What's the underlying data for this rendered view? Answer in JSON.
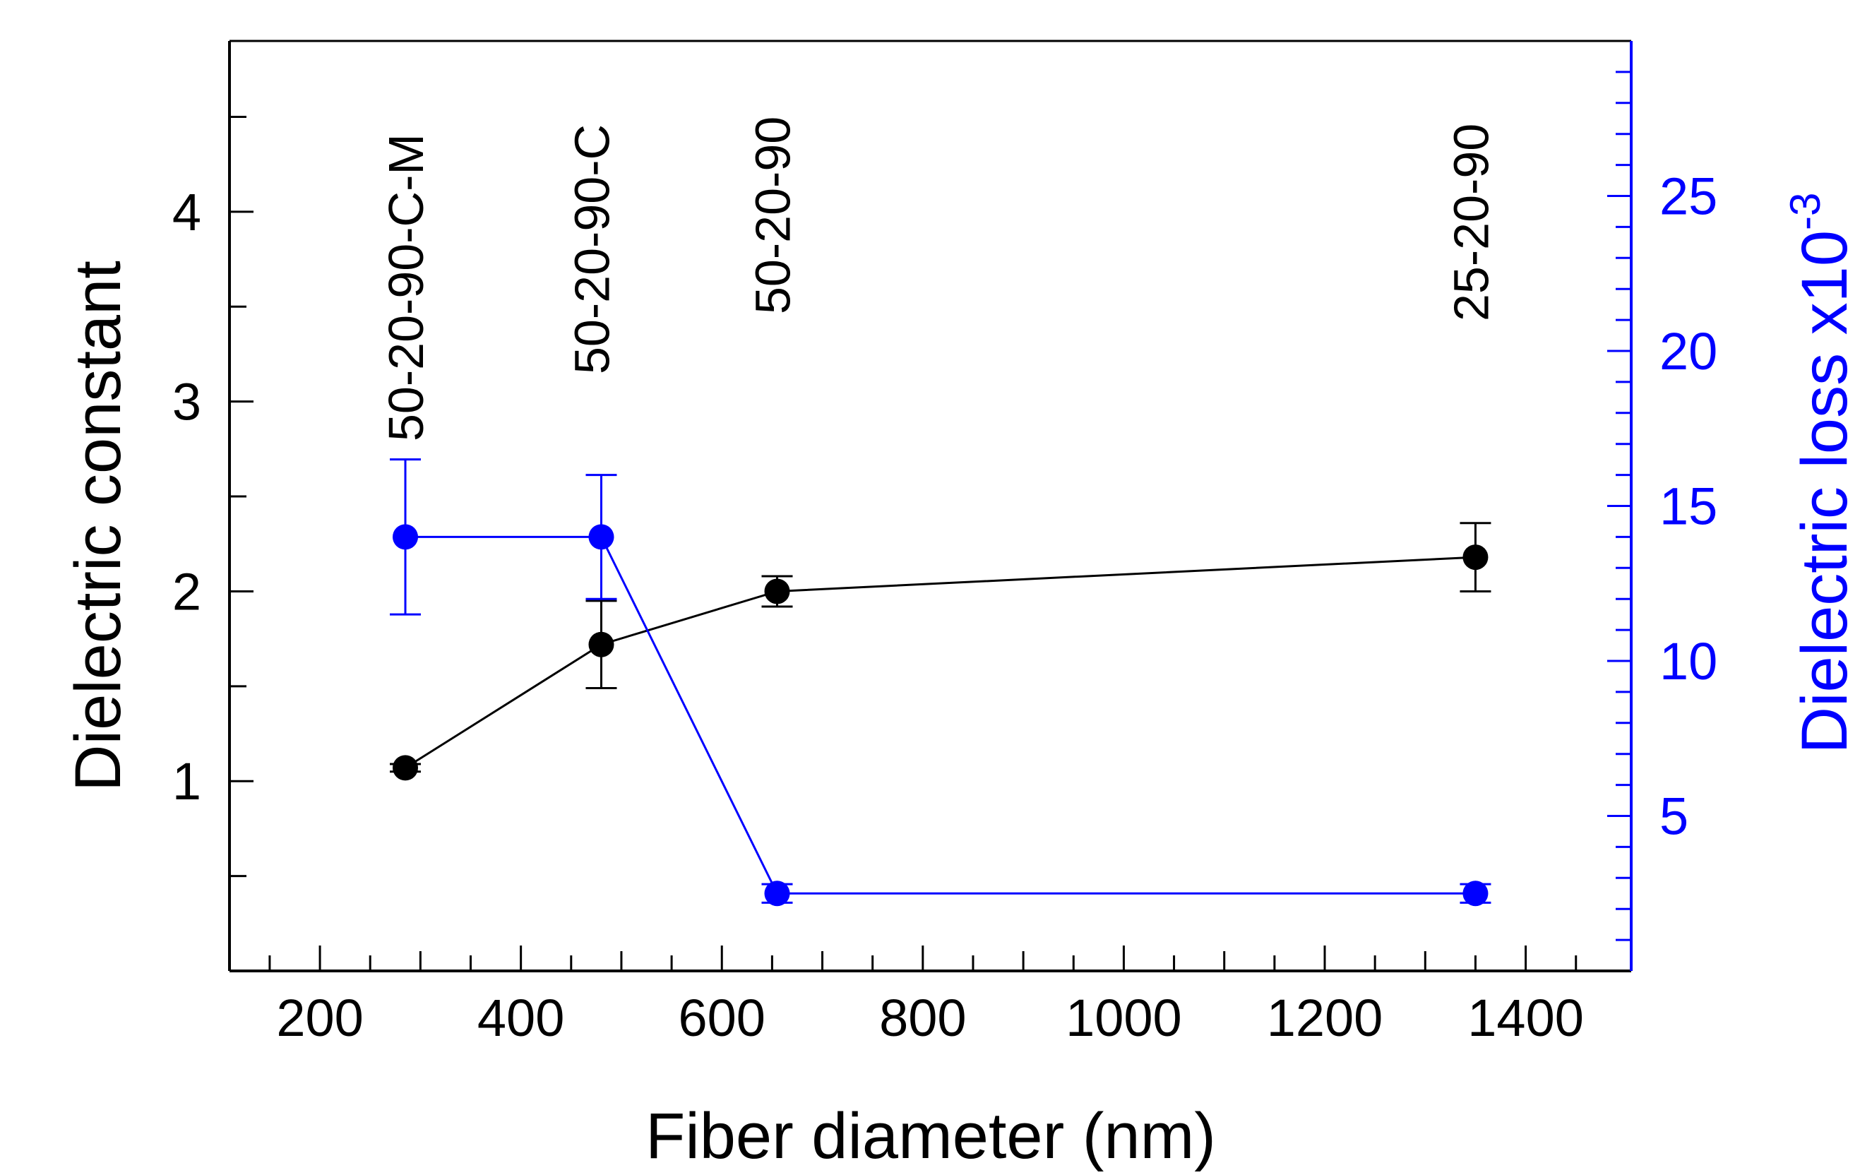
{
  "chart_data": {
    "type": "scatter",
    "title": "",
    "xlabel": "Fiber diameter (nm)",
    "ylabel_left": "Dielectric constant",
    "ylabel_right_main": "Dielectric loss x10",
    "ylabel_right_exp": "-3",
    "xlim": [
      110,
      1505
    ],
    "ylim_left": [
      0,
      4.9
    ],
    "ylim_right": [
      0,
      30
    ],
    "x_ticks": [
      200,
      400,
      600,
      800,
      1000,
      1200,
      1400
    ],
    "x_tick_labels": [
      "200",
      "400",
      "600",
      "800",
      "1000",
      "1200",
      "1400"
    ],
    "y_left_ticks": [
      1,
      2,
      3,
      4
    ],
    "y_left_tick_labels": [
      "1",
      "2",
      "3",
      "4"
    ],
    "y_right_ticks": [
      5,
      10,
      15,
      20,
      25
    ],
    "y_right_tick_labels": [
      "5",
      "10",
      "15",
      "20",
      "25"
    ],
    "sample_labels": [
      {
        "text": "50-20-90-C-M",
        "x": 285
      },
      {
        "text": "50-20-90-C",
        "x": 470
      },
      {
        "text": "50-20-90",
        "x": 650
      },
      {
        "text": "25-20-90",
        "x": 1345
      }
    ],
    "series": [
      {
        "name": "Dielectric constant",
        "axis": "left",
        "color": "#000000",
        "x": [
          285,
          480,
          655,
          1350
        ],
        "y": [
          1.07,
          1.72,
          2.0,
          2.18
        ],
        "yerr": [
          0.02,
          0.23,
          0.08,
          0.18
        ]
      },
      {
        "name": "Dielectric loss",
        "axis": "right",
        "color": "#0000ff",
        "x": [
          285,
          480,
          655,
          1350
        ],
        "y": [
          14.0,
          14.0,
          2.5,
          2.5
        ],
        "yerr": [
          2.5,
          2.0,
          0.3,
          0.3
        ]
      }
    ]
  }
}
